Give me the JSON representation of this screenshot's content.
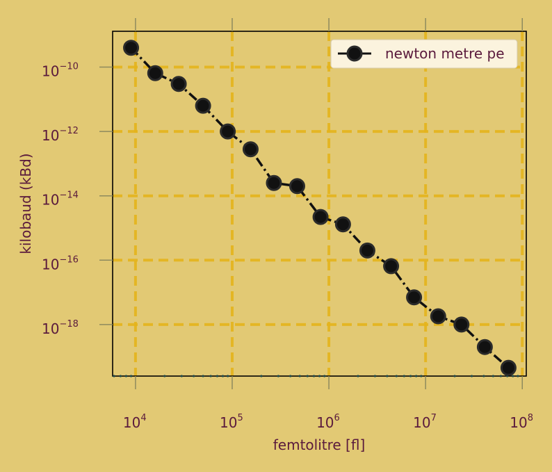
{
  "chart_data": {
    "type": "line",
    "title": "",
    "xlabel": "femtolitre [fl]",
    "ylabel": "kilobaud (kBd)",
    "xscale": "log",
    "yscale": "log",
    "xlim": [
      5800,
      110000000
    ],
    "ylim": [
      2.5e-20,
      1.3e-09
    ],
    "x_ticks": [
      {
        "value": 10000,
        "base": "10",
        "exp": "4"
      },
      {
        "value": 100000,
        "base": "10",
        "exp": "5"
      },
      {
        "value": 1000000,
        "base": "10",
        "exp": "6"
      },
      {
        "value": 10000000,
        "base": "10",
        "exp": "7"
      },
      {
        "value": 100000000,
        "base": "10",
        "exp": "8"
      }
    ],
    "y_ticks": [
      {
        "value": 1e-10,
        "base": "10",
        "exp": "−10"
      },
      {
        "value": 1e-12,
        "base": "10",
        "exp": "−12"
      },
      {
        "value": 1e-14,
        "base": "10",
        "exp": "−14"
      },
      {
        "value": 1e-16,
        "base": "10",
        "exp": "−16"
      },
      {
        "value": 1e-18,
        "base": "10",
        "exp": "−18"
      }
    ],
    "grid": true,
    "legend_position": "upper right",
    "series": [
      {
        "name": "newton metre pe",
        "line_style": "dash-dot",
        "marker": "circle",
        "color": "#111111",
        "x": [
          9000,
          16000,
          28000,
          50000,
          90000,
          155000,
          270000,
          470000,
          820000,
          1400000,
          2500000,
          4400000,
          7600000,
          13500000,
          23500000,
          41000000,
          72000000
        ],
        "y": [
          4e-10,
          6.5e-11,
          3e-11,
          6.3e-12,
          1e-12,
          2.8e-13,
          2.5e-14,
          2e-14,
          2.2e-15,
          1.3e-15,
          2e-16,
          6.5e-17,
          7e-18,
          1.8e-18,
          1e-18,
          2e-19,
          4.5e-20
        ]
      }
    ]
  },
  "colors": {
    "background": "#e2c974",
    "grid": "#e4b41c",
    "text": "#5a1a3c",
    "series": "#111111",
    "legend_bg": "#fbf3de",
    "minor_ticks": "#1f4a4a"
  }
}
